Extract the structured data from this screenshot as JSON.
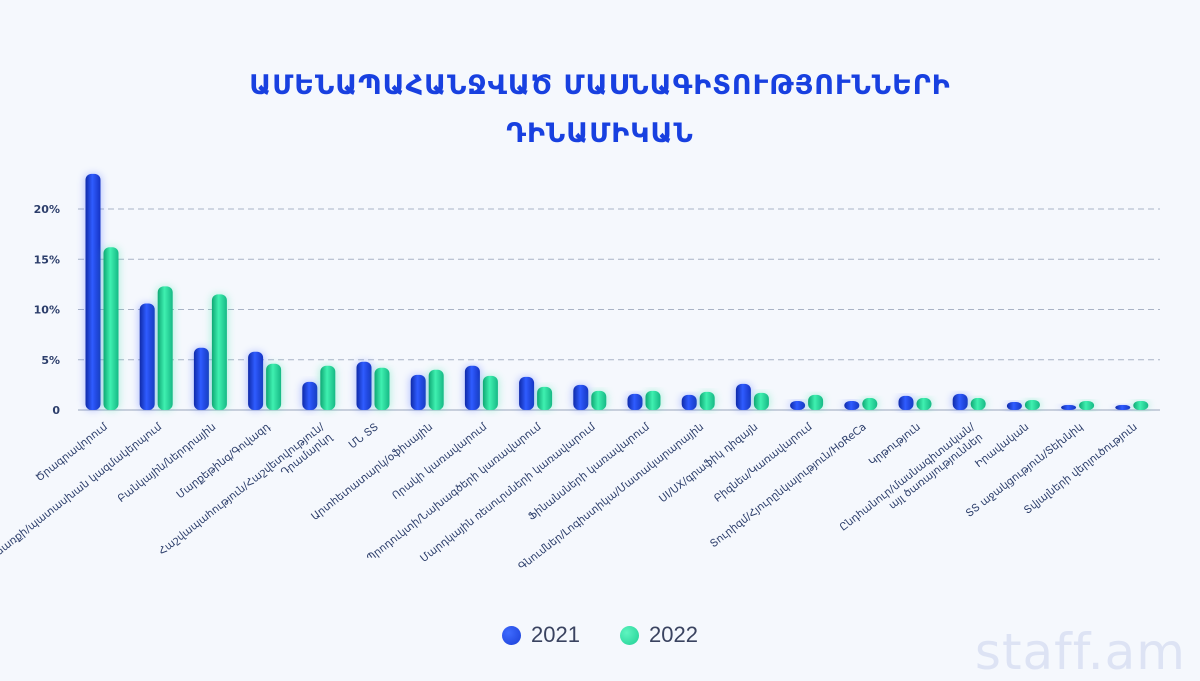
{
  "title_lines": [
    "ԱՄԵՆԱՊԱՀԱՆՋՎԱԾ ՄԱՍՆԱԳԻՏՈՒԹՅՈՒՆՆԵՐԻ",
    "ԴԻՆԱՄԻԿԱՆ"
  ],
  "watermark": "staff.am",
  "colors": {
    "series_2021": "#1a3fd6",
    "series_2022": "#1fcf94",
    "title": "#1840e0"
  },
  "chart_data": {
    "type": "bar",
    "title": "ԱՄԵՆԱՊԱՀԱՆՋՎԱԾ ՄԱՍՆԱԳԻՏՈՒԹՅՈՒՆՆԵՐԻ ԴԻՆԱՄԻԿԱՆ",
    "xlabel": "",
    "ylabel": "",
    "ylim": [
      0,
      25
    ],
    "yticks": [
      0,
      5,
      10,
      15,
      20
    ],
    "ytick_labels": [
      "0",
      "5%",
      "10%",
      "15%",
      "20%"
    ],
    "grid": true,
    "legend_position": "bottom",
    "categories": [
      "Ծրագրավորում",
      "Վաճառքի/պատասխան կազմակերպում",
      "Բանկային/ներդրային",
      "Մարքեթինգ/Գովազդ",
      "Հաշվապահություն/Հաշվետվություն/ Դրամարկղ",
      "ՄՆ ՏՏ",
      "Արտհետատարկ/օֆիսային",
      "Որակի կառավարում",
      "Պրոդուկտի/Նախագծերի կառավարում",
      "Մարդկային ռեսուրսների կառավարում",
      "Ֆինանսների կառավարում",
      "Գնումներ/Լոգիստիկա/Մատակարարային",
      "UI/UX/գրաֆիկ դիզայն",
      "Բիզնես/Կառավարում",
      "Տուրիզմ/Հյուրընկալություն/HoReCa",
      "Կրթություն",
      "Ընդհանուր/մասնագիտական/ այլ ծառայություններ",
      "Իրավական",
      "ՏՏ աջակցություն/Տեխնիկ",
      "Տվյալների վերլուծություն"
    ],
    "series": [
      {
        "name": "2021",
        "values": [
          23.5,
          10.6,
          6.2,
          5.8,
          2.8,
          4.8,
          3.5,
          4.4,
          3.3,
          2.5,
          1.6,
          1.5,
          2.6,
          0.9,
          0.9,
          1.4,
          1.6,
          0.8,
          0.5,
          0.5
        ]
      },
      {
        "name": "2022",
        "values": [
          16.2,
          12.3,
          11.5,
          4.6,
          4.4,
          4.2,
          4.0,
          3.4,
          2.3,
          1.9,
          1.9,
          1.8,
          1.7,
          1.5,
          1.2,
          1.2,
          1.2,
          1.0,
          0.9,
          0.9
        ]
      }
    ]
  }
}
